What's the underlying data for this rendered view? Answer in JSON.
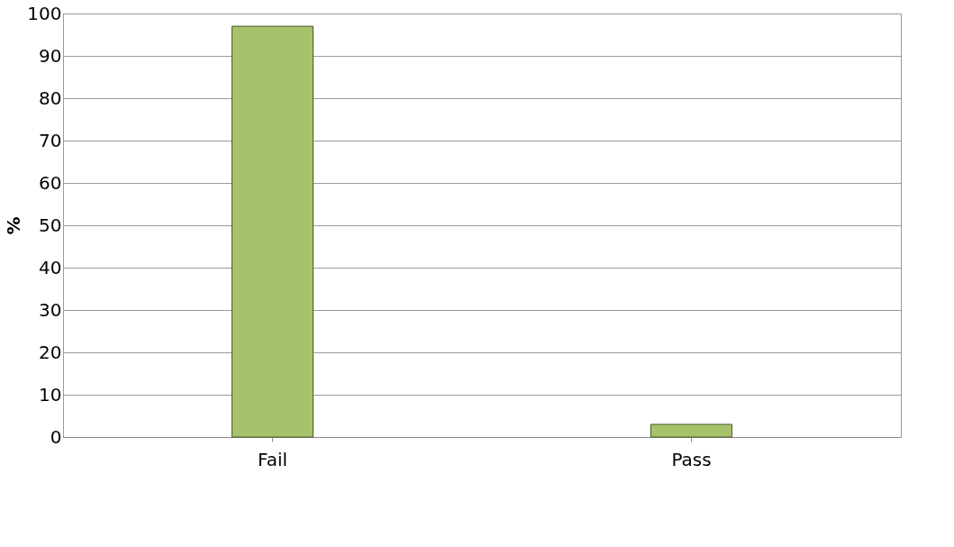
{
  "chart_data": {
    "type": "bar",
    "ylabel": "%",
    "categories": [
      "Fail",
      "Pass"
    ],
    "values": [
      97,
      3
    ],
    "color": "#a6c36b",
    "ylim": [
      0,
      100
    ],
    "yticks": [
      0,
      10,
      20,
      30,
      40,
      50,
      60,
      70,
      80,
      90,
      100
    ],
    "grid": "y"
  }
}
